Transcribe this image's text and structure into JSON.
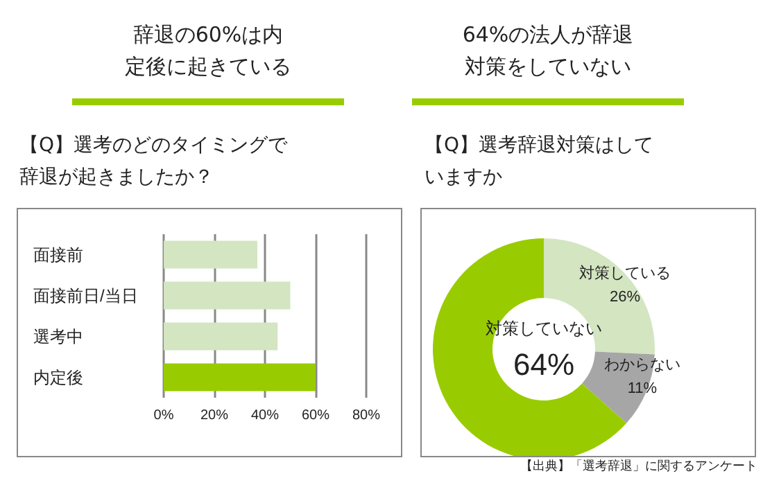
{
  "chart_data": [
    {
      "type": "bar",
      "orientation": "horizontal",
      "title": "辞退の60%は内定後に起きている",
      "subtitle": "【Q】選考のどのタイミングで辞退が起きましたか？",
      "categories": [
        "面接前",
        "面接前日/当日",
        "選考中",
        "内定後"
      ],
      "values": [
        37,
        50,
        45,
        60
      ],
      "colors": [
        "#d3e5c1",
        "#d3e5c1",
        "#d3e5c1",
        "#99cc00"
      ],
      "xlim": [
        0,
        80
      ],
      "xticks": [
        {
          "value": 0,
          "label": "0%"
        },
        {
          "value": 20,
          "label": "20%"
        },
        {
          "value": 40,
          "label": "40%"
        },
        {
          "value": 60,
          "label": "60%"
        },
        {
          "value": 80,
          "label": "80%"
        }
      ],
      "grid": "x"
    },
    {
      "type": "donut",
      "title": "64%の法人が辞退対策をしていない",
      "subtitle": "【Q】選考辞退対策はしていますか",
      "categories": [
        "対策している",
        "わからない",
        "対策していない"
      ],
      "values": [
        26,
        11,
        64
      ],
      "colors": [
        "#d3e5c1",
        "#a6a6a6",
        "#99cc00"
      ],
      "value_labels": [
        "26%",
        "11%",
        "64%"
      ],
      "annotations": [
        "【出典】「選考辞退」に関するアンケート"
      ]
    }
  ]
}
